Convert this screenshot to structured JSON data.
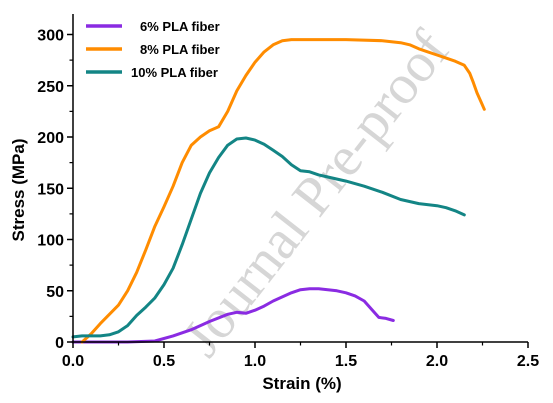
{
  "chart_data": {
    "type": "line",
    "xlabel": "Strain (%)",
    "ylabel": "Stress (MPa)",
    "xlim": [
      0,
      2.5
    ],
    "ylim": [
      0,
      320
    ],
    "x_ticks": [
      "0.0",
      "0.5",
      "1.0",
      "1.5",
      "2.0",
      "2.5"
    ],
    "y_ticks": [
      "0",
      "50",
      "100",
      "150",
      "200",
      "250",
      "300"
    ],
    "legend_position": "top-left",
    "watermark": "Journal Pre-proof",
    "series": [
      {
        "name": "6% PLA fiber",
        "color": "#8a2be2",
        "points": [
          [
            0,
            0
          ],
          [
            0.3,
            0
          ],
          [
            0.45,
            1
          ],
          [
            0.55,
            6
          ],
          [
            0.65,
            12
          ],
          [
            0.75,
            20
          ],
          [
            0.85,
            27
          ],
          [
            0.9,
            29
          ],
          [
            0.95,
            28
          ],
          [
            1.0,
            31
          ],
          [
            1.05,
            35
          ],
          [
            1.1,
            40
          ],
          [
            1.15,
            44
          ],
          [
            1.2,
            48
          ],
          [
            1.25,
            51
          ],
          [
            1.3,
            52
          ],
          [
            1.35,
            52
          ],
          [
            1.4,
            51
          ],
          [
            1.45,
            50
          ],
          [
            1.5,
            48
          ],
          [
            1.55,
            45
          ],
          [
            1.6,
            40
          ],
          [
            1.65,
            30
          ],
          [
            1.68,
            24
          ],
          [
            1.72,
            23
          ],
          [
            1.76,
            21
          ]
        ]
      },
      {
        "name": "8% PLA fiber",
        "color": "#ff8c00",
        "points": [
          [
            0.05,
            0
          ],
          [
            0.1,
            8
          ],
          [
            0.15,
            18
          ],
          [
            0.2,
            27
          ],
          [
            0.25,
            36
          ],
          [
            0.3,
            50
          ],
          [
            0.35,
            68
          ],
          [
            0.4,
            90
          ],
          [
            0.45,
            113
          ],
          [
            0.5,
            132
          ],
          [
            0.55,
            152
          ],
          [
            0.6,
            175
          ],
          [
            0.65,
            192
          ],
          [
            0.7,
            200
          ],
          [
            0.75,
            206
          ],
          [
            0.8,
            210
          ],
          [
            0.85,
            225
          ],
          [
            0.9,
            245
          ],
          [
            0.95,
            260
          ],
          [
            1.0,
            273
          ],
          [
            1.05,
            283
          ],
          [
            1.1,
            290
          ],
          [
            1.15,
            294
          ],
          [
            1.2,
            295
          ],
          [
            1.3,
            295
          ],
          [
            1.5,
            295
          ],
          [
            1.7,
            294
          ],
          [
            1.8,
            292
          ],
          [
            1.85,
            290
          ],
          [
            1.9,
            286
          ],
          [
            1.95,
            283
          ],
          [
            2.0,
            280
          ],
          [
            2.05,
            277
          ],
          [
            2.1,
            274
          ],
          [
            2.15,
            270
          ],
          [
            2.18,
            262
          ],
          [
            2.2,
            253
          ],
          [
            2.22,
            243
          ],
          [
            2.24,
            235
          ],
          [
            2.26,
            227
          ]
        ]
      },
      {
        "name": "10% PLA fiber",
        "color": "#138585",
        "points": [
          [
            0,
            5
          ],
          [
            0.05,
            6
          ],
          [
            0.1,
            6
          ],
          [
            0.15,
            6
          ],
          [
            0.2,
            7
          ],
          [
            0.25,
            10
          ],
          [
            0.3,
            16
          ],
          [
            0.35,
            26
          ],
          [
            0.4,
            34
          ],
          [
            0.45,
            43
          ],
          [
            0.5,
            56
          ],
          [
            0.55,
            72
          ],
          [
            0.6,
            95
          ],
          [
            0.65,
            120
          ],
          [
            0.7,
            145
          ],
          [
            0.75,
            165
          ],
          [
            0.8,
            180
          ],
          [
            0.85,
            192
          ],
          [
            0.9,
            198
          ],
          [
            0.95,
            199
          ],
          [
            1.0,
            197
          ],
          [
            1.05,
            193
          ],
          [
            1.1,
            187
          ],
          [
            1.15,
            181
          ],
          [
            1.2,
            173
          ],
          [
            1.25,
            167
          ],
          [
            1.3,
            166
          ],
          [
            1.35,
            163
          ],
          [
            1.4,
            161
          ],
          [
            1.5,
            157
          ],
          [
            1.6,
            152
          ],
          [
            1.7,
            146
          ],
          [
            1.8,
            139
          ],
          [
            1.9,
            135
          ],
          [
            2.0,
            133
          ],
          [
            2.05,
            131
          ],
          [
            2.1,
            128
          ],
          [
            2.15,
            124
          ]
        ]
      }
    ]
  }
}
